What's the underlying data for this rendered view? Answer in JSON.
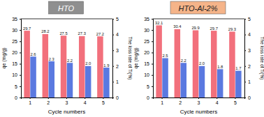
{
  "chart_data": [
    {
      "type": "bar",
      "title": "HTO",
      "categories": [
        "1",
        "2",
        "3",
        "4",
        "5"
      ],
      "x_label": "Cycle numbers",
      "y_label": "qe (mg/g)",
      "y2_label": "The loss rate of Ti(%)",
      "ylim": [
        0,
        35
      ],
      "yticks": [
        0,
        5,
        10,
        15,
        20,
        25,
        30,
        35
      ],
      "y2lim": [
        0,
        5
      ],
      "y2ticks": [
        0,
        1,
        2,
        3,
        4,
        5
      ],
      "data_labels": true,
      "series": [
        {
          "color": "#f2707c",
          "values": [
            29.7,
            28.2,
            27.5,
            27.3,
            27.2
          ]
        },
        {
          "color": "#5a79e0",
          "axis": "y2",
          "values": [
            2.6,
            2.3,
            2.2,
            2.0,
            1.9
          ],
          "value_labels": [
            "2.6",
            "2.3",
            "2.2",
            "2.0",
            "1.9"
          ]
        }
      ]
    },
    {
      "type": "bar",
      "title": "HTO-Al-2%",
      "categories": [
        "1",
        "2",
        "3",
        "4",
        "5"
      ],
      "x_label": "Cycle numbers",
      "y_label": "qe (mg/g)",
      "y2_label": "The loss rate of Ti(%)",
      "ylim": [
        0,
        35
      ],
      "yticks": [
        0,
        5,
        10,
        15,
        20,
        25,
        30,
        35
      ],
      "y2lim": [
        0,
        5
      ],
      "y2ticks": [
        0,
        1,
        2,
        3,
        4,
        5
      ],
      "data_labels": true,
      "series": [
        {
          "color": "#f2707c",
          "values": [
            32.1,
            30.4,
            29.9,
            29.7,
            29.3
          ]
        },
        {
          "color": "#5a79e0",
          "axis": "y2",
          "values": [
            2.5,
            2.2,
            2.0,
            1.8,
            1.7
          ],
          "value_labels": [
            "2.5",
            "2.2",
            "2.0",
            "1.8",
            "1.7"
          ]
        }
      ]
    }
  ]
}
